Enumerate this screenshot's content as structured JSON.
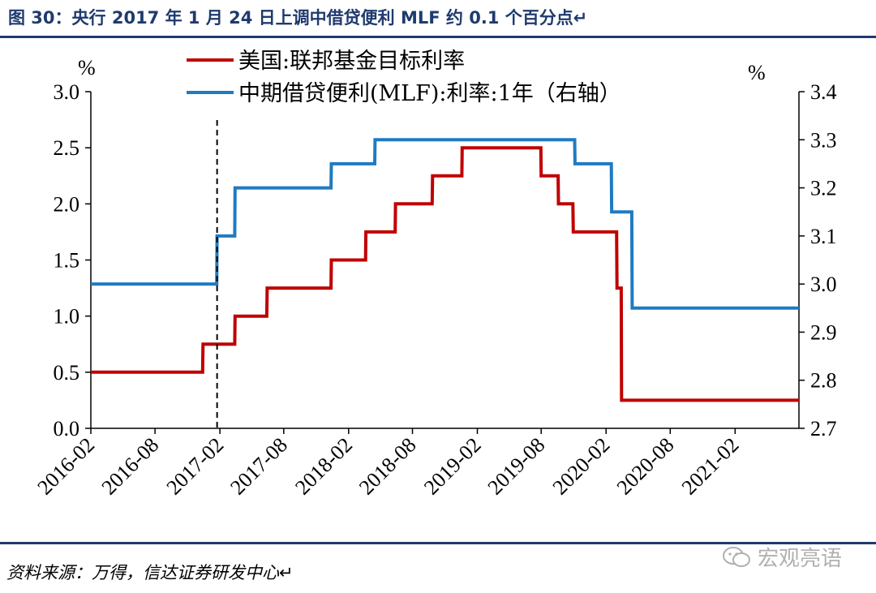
{
  "header": {
    "title": "图 30：央行 2017 年 1 月 24 日上调中借贷便利 MLF 约 0.1 个百分点↵"
  },
  "footer": {
    "source": "资料来源：万得，信达证券研发中心↵",
    "watermark": "宏观亮语"
  },
  "colors": {
    "us_rate": "#c00000",
    "mlf_rate": "#1f7bc1",
    "rule": "#1f3a6e"
  },
  "chart_data": {
    "type": "line",
    "title": "",
    "x_tick_labels": [
      "2016-02",
      "2016-08",
      "2017-02",
      "2017-08",
      "2018-02",
      "2018-08",
      "2019-02",
      "2019-08",
      "2020-02",
      "2020-08",
      "2021-02"
    ],
    "x_range": [
      "2016-02-01",
      "2021-08-01"
    ],
    "y_left": {
      "label": "%",
      "range": [
        0.0,
        3.0
      ],
      "ticks": [
        "0.0",
        "0.5",
        "1.0",
        "1.5",
        "2.0",
        "2.5",
        "3.0"
      ]
    },
    "y_right": {
      "label": "%",
      "range": [
        2.7,
        3.4
      ],
      "ticks": [
        "2.7",
        "2.8",
        "2.9",
        "3.0",
        "3.1",
        "3.2",
        "3.3",
        "3.4"
      ]
    },
    "annotation": {
      "type": "vertical-dashed-line",
      "date": "2017-01-24"
    },
    "legend_placement": "top",
    "series": [
      {
        "name": "美国:联邦基金目标利率",
        "axis": "left",
        "points": [
          [
            "2016-02-01",
            0.5
          ],
          [
            "2016-12-14",
            0.5
          ],
          [
            "2016-12-15",
            0.75
          ],
          [
            "2017-03-15",
            0.75
          ],
          [
            "2017-03-16",
            1.0
          ],
          [
            "2017-06-14",
            1.0
          ],
          [
            "2017-06-15",
            1.25
          ],
          [
            "2017-12-13",
            1.25
          ],
          [
            "2017-12-14",
            1.5
          ],
          [
            "2018-03-21",
            1.5
          ],
          [
            "2018-03-22",
            1.75
          ],
          [
            "2018-06-13",
            1.75
          ],
          [
            "2018-06-14",
            2.0
          ],
          [
            "2018-09-26",
            2.0
          ],
          [
            "2018-09-27",
            2.25
          ],
          [
            "2018-12-19",
            2.25
          ],
          [
            "2018-12-20",
            2.5
          ],
          [
            "2019-07-31",
            2.5
          ],
          [
            "2019-08-01",
            2.25
          ],
          [
            "2019-09-18",
            2.25
          ],
          [
            "2019-09-19",
            2.0
          ],
          [
            "2019-10-30",
            2.0
          ],
          [
            "2019-10-31",
            1.75
          ],
          [
            "2020-03-02",
            1.75
          ],
          [
            "2020-03-03",
            1.25
          ],
          [
            "2020-03-15",
            1.25
          ],
          [
            "2020-03-16",
            0.25
          ],
          [
            "2021-08-01",
            0.25
          ]
        ]
      },
      {
        "name": "中期借贷便利(MLF):利率:1年（右轴）",
        "axis": "right",
        "points": [
          [
            "2016-02-01",
            3.0
          ],
          [
            "2017-01-23",
            3.0
          ],
          [
            "2017-01-24",
            3.1
          ],
          [
            "2017-03-15",
            3.1
          ],
          [
            "2017-03-16",
            3.2
          ],
          [
            "2017-12-13",
            3.2
          ],
          [
            "2017-12-14",
            3.25
          ],
          [
            "2018-04-16",
            3.25
          ],
          [
            "2018-04-17",
            3.3
          ],
          [
            "2019-11-04",
            3.3
          ],
          [
            "2019-11-05",
            3.25
          ],
          [
            "2020-02-16",
            3.25
          ],
          [
            "2020-02-17",
            3.15
          ],
          [
            "2020-04-14",
            3.15
          ],
          [
            "2020-04-15",
            2.95
          ],
          [
            "2021-08-01",
            2.95
          ]
        ]
      }
    ]
  }
}
